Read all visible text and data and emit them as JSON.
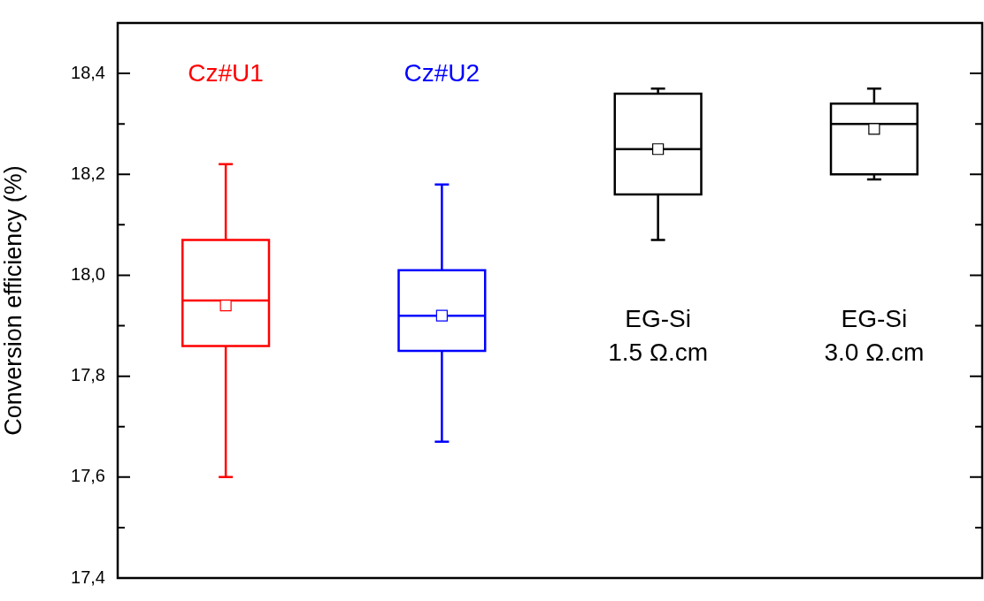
{
  "chart_data": {
    "type": "box",
    "ylabel": "Conversion efficiency (%)",
    "categories": [
      "Cz#U1",
      "Cz#U2",
      "EG-Si\n1.5 Ω.cm",
      "EG-Si\n3.0 Ω.cm"
    ],
    "colors": [
      "#ff0000",
      "#0000ff",
      "#000000",
      "#000000"
    ],
    "boxes": [
      {
        "low": 17.6,
        "q1": 17.86,
        "median": 17.95,
        "q3": 18.07,
        "high": 18.22,
        "mean": 17.94
      },
      {
        "low": 17.67,
        "q1": 17.85,
        "median": 17.92,
        "q3": 18.01,
        "high": 18.18,
        "mean": 17.92
      },
      {
        "low": 18.07,
        "q1": 18.16,
        "median": 18.25,
        "q3": 18.36,
        "high": 18.37,
        "mean": 18.25
      },
      {
        "low": 18.19,
        "q1": 18.2,
        "median": 18.3,
        "q3": 18.34,
        "high": 18.37,
        "mean": 18.29
      }
    ],
    "marker": "square",
    "ylim": [
      17.4,
      18.5
    ],
    "yticks": [
      {
        "value": 17.4,
        "label": "17,4"
      },
      {
        "value": 17.5,
        "label": null
      },
      {
        "value": 17.6,
        "label": "17,6"
      },
      {
        "value": 17.7,
        "label": null
      },
      {
        "value": 17.8,
        "label": "17,8"
      },
      {
        "value": 17.9,
        "label": null
      },
      {
        "value": 18.0,
        "label": "18,0"
      },
      {
        "value": 18.1,
        "label": null
      },
      {
        "value": 18.2,
        "label": "18,2"
      },
      {
        "value": 18.3,
        "label": null
      },
      {
        "value": 18.4,
        "label": "18,4"
      }
    ],
    "tick_labels": "y",
    "grid": false,
    "legend": false
  }
}
